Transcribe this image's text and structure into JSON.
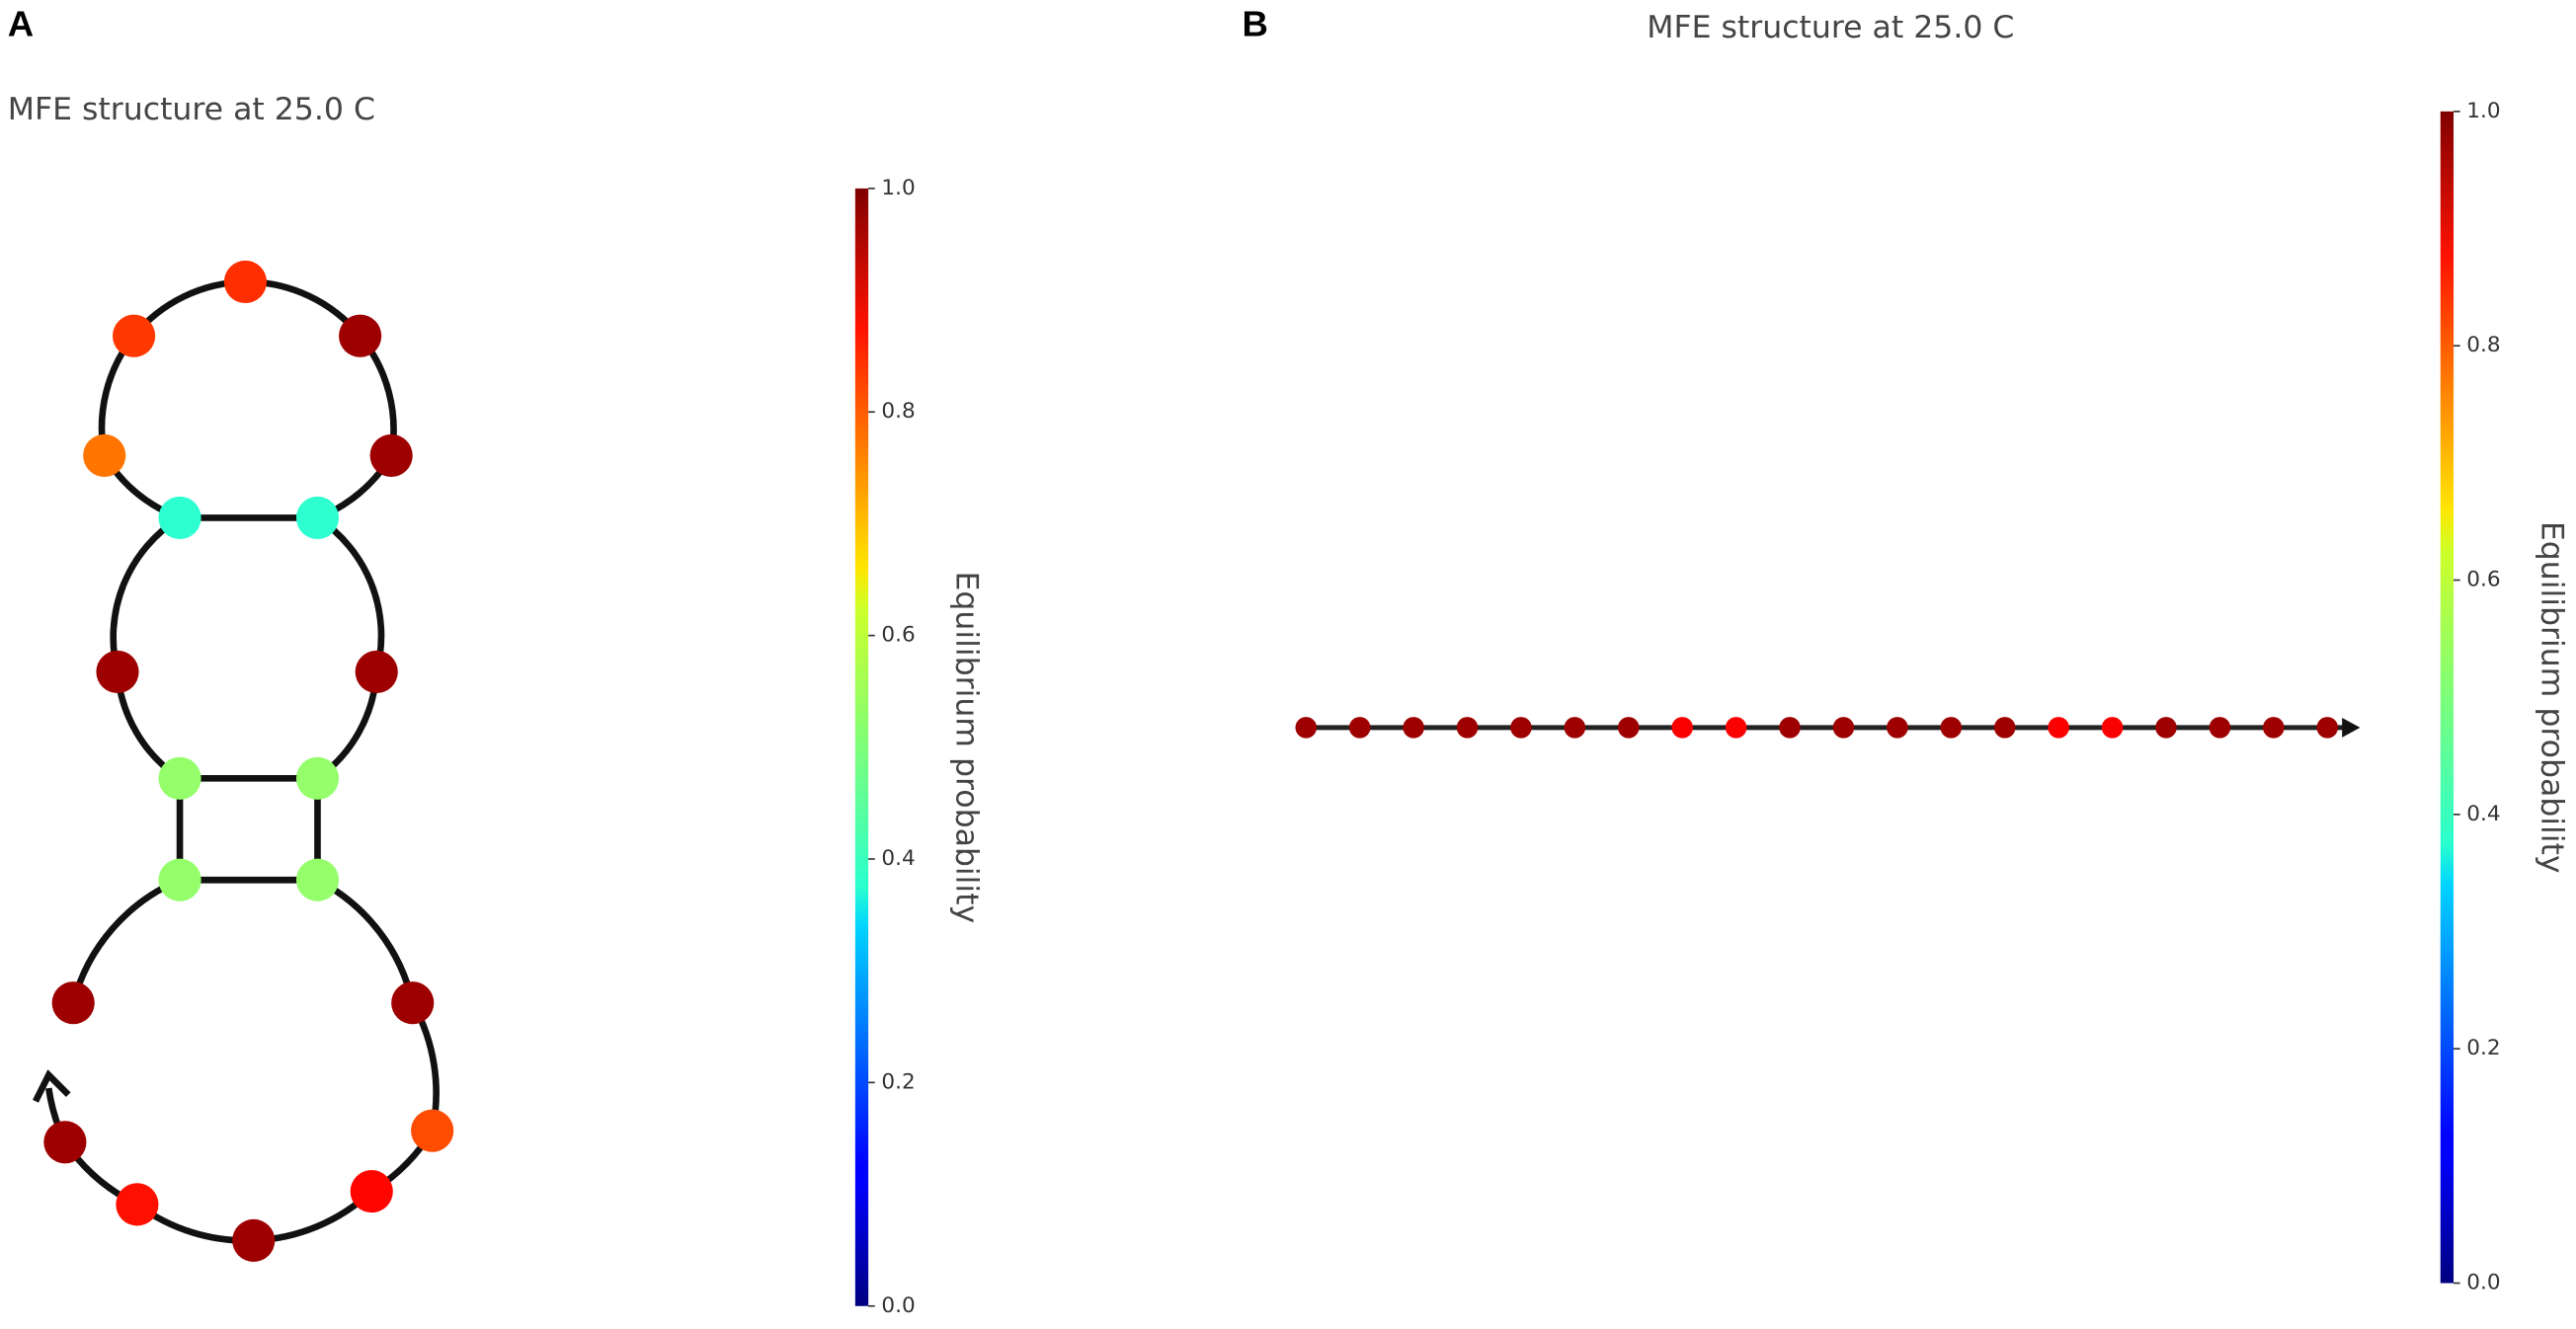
{
  "panels": [
    {
      "label": "A",
      "title": "MFE structure at 25.0 C",
      "colormap": "jet",
      "probabilities": [
        0.97,
        0.52,
        0.52,
        0.97,
        0.42,
        0.76,
        0.82,
        0.83,
        0.97,
        0.97,
        0.42,
        0.97,
        0.52,
        0.52,
        0.97,
        0.8,
        0.87,
        0.97,
        0.86,
        0.97
      ],
      "colorbar": {
        "label": "Equilibrium probability",
        "lim": [
          0,
          1
        ],
        "ticks": [
          {
            "value": 0,
            "label": "0.0"
          },
          0.2,
          0.4,
          0.6,
          0.8,
          {
            "value": 1,
            "label": "1.0"
          }
        ]
      }
    },
    {
      "label": "B",
      "title": "MFE structure at 25.0 C",
      "colormap": "jet",
      "probabilities": [
        0.97,
        0.97,
        0.97,
        0.97,
        0.97,
        0.97,
        0.97,
        0.88,
        0.88,
        0.97,
        0.97,
        0.97,
        0.97,
        0.97,
        0.88,
        0.88,
        0.97,
        0.97,
        0.97,
        0.97
      ],
      "colorbar": {
        "label": "Equilibrium probability",
        "lim": [
          0,
          1
        ],
        "ticks": [
          {
            "value": 0,
            "label": "0.0"
          },
          0.2,
          0.4,
          0.6,
          0.8,
          {
            "value": 1,
            "label": "1.0"
          }
        ]
      }
    }
  ]
}
